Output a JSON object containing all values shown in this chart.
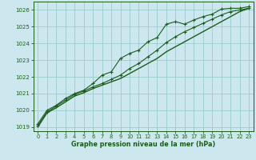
{
  "title": "Graphe pression niveau de la mer (hPa)",
  "bg_color": "#cce8ee",
  "grid_color": "#99cccc",
  "line_color": "#1a5c1a",
  "xlim": [
    -0.5,
    23.5
  ],
  "ylim": [
    1018.75,
    1026.5
  ],
  "yticks": [
    1019,
    1020,
    1021,
    1022,
    1023,
    1024,
    1025,
    1026
  ],
  "xticks": [
    0,
    1,
    2,
    3,
    4,
    5,
    6,
    7,
    8,
    9,
    10,
    11,
    12,
    13,
    14,
    15,
    16,
    17,
    18,
    19,
    20,
    21,
    22,
    23
  ],
  "series1": [
    1019.2,
    1020.0,
    1020.3,
    1020.7,
    1021.0,
    1021.2,
    1021.6,
    1022.1,
    1022.3,
    1023.1,
    1023.4,
    1023.6,
    1024.1,
    1024.35,
    1025.15,
    1025.3,
    1025.15,
    1025.4,
    1025.6,
    1025.75,
    1026.05,
    1026.1,
    1026.1,
    1026.2
  ],
  "series2": [
    1019.1,
    1019.9,
    1020.25,
    1020.6,
    1020.95,
    1021.15,
    1021.4,
    1021.6,
    1021.85,
    1022.1,
    1022.5,
    1022.8,
    1023.2,
    1023.6,
    1024.05,
    1024.4,
    1024.7,
    1024.95,
    1025.2,
    1025.45,
    1025.7,
    1025.9,
    1026.0,
    1026.1
  ],
  "series3": [
    1019.0,
    1019.85,
    1020.15,
    1020.5,
    1020.85,
    1021.05,
    1021.3,
    1021.5,
    1021.7,
    1021.9,
    1022.2,
    1022.5,
    1022.8,
    1023.1,
    1023.5,
    1023.8,
    1024.1,
    1024.4,
    1024.7,
    1025.0,
    1025.3,
    1025.6,
    1025.9,
    1026.1
  ]
}
